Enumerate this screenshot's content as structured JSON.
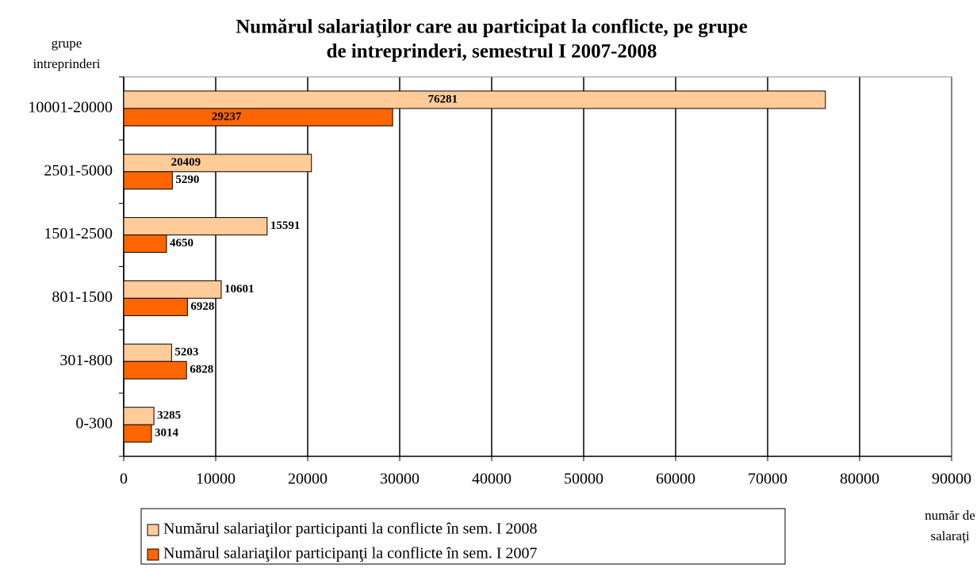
{
  "chart_data": {
    "type": "barh",
    "title": [
      "Numărul salariaţilor care au participat la conflicte, pe grupe",
      "de intreprinderi, semestrul I 2007-2008"
    ],
    "y_label": [
      "grupe",
      "intreprinderi"
    ],
    "x_label": [
      "număr de",
      "salaraţi"
    ],
    "categories": [
      "10001-20000",
      "2501-5000",
      "1501-2500",
      "801-1500",
      "301-800",
      "0-300"
    ],
    "series": [
      {
        "name": "Numărul salariaţilor participanti la conflicte în sem. I 2008",
        "color": "#ffcc99",
        "values": [
          76281,
          20409,
          15591,
          10601,
          5203,
          3285
        ]
      },
      {
        "name": "Numărul salariaţilor participanţi la conflicte în sem. I 2007",
        "color": "#ff6600",
        "values": [
          29237,
          5290,
          4650,
          6928,
          6828,
          3014
        ]
      }
    ],
    "xlim": [
      0,
      90000
    ],
    "xticks": [
      0,
      10000,
      20000,
      30000,
      40000,
      50000,
      60000,
      70000,
      80000,
      90000
    ],
    "grid": true,
    "legend": "bottom"
  }
}
